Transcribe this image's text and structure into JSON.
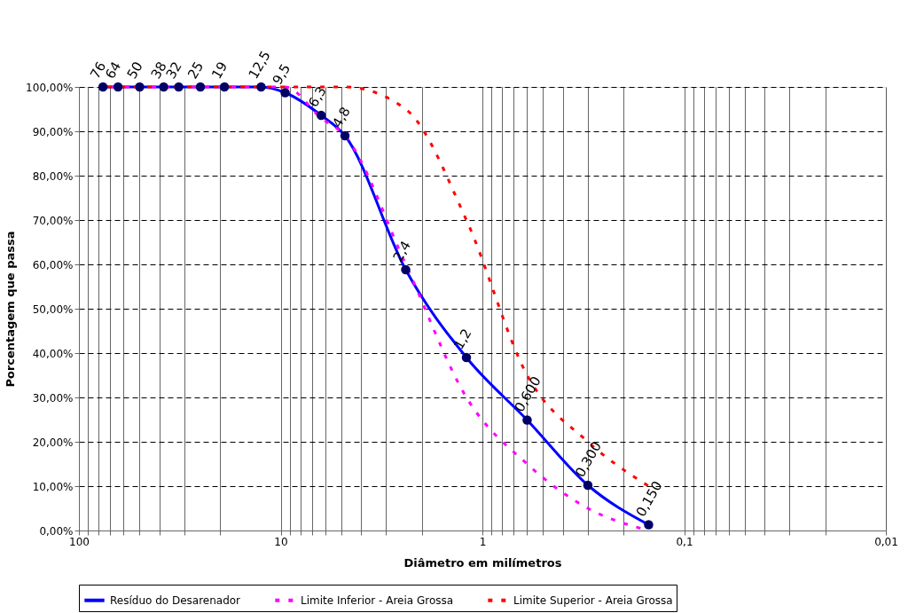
{
  "chart_data": {
    "type": "line",
    "xlabel": "Diâmetro em milímetros",
    "ylabel": "Porcentagem que passa",
    "log": "x",
    "xlim": [
      100,
      0.01
    ],
    "ylim": [
      0,
      100
    ],
    "xticks": [
      100,
      {
        "value": 90,
        "label": null
      },
      {
        "value": 80,
        "label": null
      },
      {
        "value": 70,
        "label": null
      },
      {
        "value": 60,
        "label": null
      },
      {
        "value": 50,
        "label": null
      },
      {
        "value": 40,
        "label": null
      },
      {
        "value": 30,
        "label": null
      },
      {
        "value": 20,
        "label": null
      },
      10,
      {
        "value": 9,
        "label": null
      },
      {
        "value": 8,
        "label": null
      },
      {
        "value": 7,
        "label": null
      },
      {
        "value": 6,
        "label": null
      },
      {
        "value": 5,
        "label": null
      },
      {
        "value": 4,
        "label": null
      },
      {
        "value": 3,
        "label": null
      },
      {
        "value": 2,
        "label": null
      },
      1,
      {
        "value": 0.9,
        "label": null
      },
      {
        "value": 0.8,
        "label": null
      },
      {
        "value": 0.7,
        "label": null
      },
      {
        "value": 0.6,
        "label": null
      },
      {
        "value": 0.5,
        "label": null
      },
      {
        "value": 0.4,
        "label": null
      },
      {
        "value": 0.3,
        "label": null
      },
      {
        "value": 0.2,
        "label": null
      },
      {
        "value": 0.1,
        "label": "0,1"
      },
      {
        "value": 0.09,
        "label": null
      },
      {
        "value": 0.08,
        "label": null
      },
      {
        "value": 0.07,
        "label": null
      },
      {
        "value": 0.06,
        "label": null
      },
      {
        "value": 0.05,
        "label": null
      },
      {
        "value": 0.04,
        "label": null
      },
      {
        "value": 0.03,
        "label": null
      },
      {
        "value": 0.02,
        "label": null
      },
      {
        "value": 0.01,
        "label": "0,01"
      }
    ],
    "yticks": [
      {
        "value": 0,
        "label": "0,00%"
      },
      {
        "value": 10,
        "label": "10,00%"
      },
      {
        "value": 20,
        "label": "20,00%"
      },
      {
        "value": 30,
        "label": "30,00%"
      },
      {
        "value": 40,
        "label": "40,00%"
      },
      {
        "value": 50,
        "label": "50,00%"
      },
      {
        "value": 60,
        "label": "60,00%"
      },
      {
        "value": 70,
        "label": "70,00%"
      },
      {
        "value": 80,
        "label": "80,00%"
      },
      {
        "value": 90,
        "label": "90,00%"
      },
      {
        "value": 100,
        "label": "100,00%"
      }
    ],
    "grid": true,
    "legend": "bottom",
    "series": [
      {
        "name": "Resíduo do Desarenador",
        "color": "#0000ff",
        "marker": "circle",
        "line_style": "solid",
        "x": [
          76,
          64,
          50,
          38,
          32,
          25,
          19,
          12.5,
          9.5,
          6.3,
          4.8,
          2.4,
          1.2,
          0.6,
          0.3,
          0.15
        ],
        "values": [
          100,
          100,
          100,
          100,
          100,
          100,
          100,
          100,
          98.7,
          93.6,
          89,
          58.8,
          39,
          24.9,
          10.2,
          1.3
        ]
      },
      {
        "name": "Limite Inferior - Areia Grossa",
        "color": "#ff00ff",
        "marker": "none",
        "line_style": "dashed",
        "x": [
          76,
          64,
          50,
          38,
          32,
          25,
          19,
          12.5,
          9.5,
          6.3,
          4.8,
          2.4,
          1.2,
          0.6,
          0.3,
          0.15
        ],
        "values": [
          100,
          100,
          100,
          100,
          100,
          100,
          100,
          100,
          100,
          93,
          89,
          60,
          30,
          15,
          5,
          0
        ]
      },
      {
        "name": "Limite Superior - Areia Grossa",
        "color": "#ff0000",
        "marker": "none",
        "line_style": "dashed",
        "x": [
          76,
          64,
          50,
          38,
          32,
          25,
          19,
          12.5,
          9.5,
          6.3,
          4.8,
          2.4,
          1.2,
          0.6,
          0.3,
          0.15
        ],
        "values": [
          100,
          100,
          100,
          100,
          100,
          100,
          100,
          100,
          100,
          100,
          100,
          95,
          70,
          35,
          20,
          10
        ]
      }
    ],
    "annotations": [
      {
        "text": "76",
        "x": 76,
        "y": 100
      },
      {
        "text": "64",
        "x": 64,
        "y": 100
      },
      {
        "text": "50",
        "x": 50,
        "y": 100
      },
      {
        "text": "38",
        "x": 38,
        "y": 100
      },
      {
        "text": "32",
        "x": 32,
        "y": 100
      },
      {
        "text": "25",
        "x": 25,
        "y": 100
      },
      {
        "text": "19",
        "x": 19,
        "y": 100
      },
      {
        "text": "12,5",
        "x": 12.5,
        "y": 100
      },
      {
        "text": "9,5",
        "x": 9.5,
        "y": 98.7
      },
      {
        "text": "6,3",
        "x": 6.3,
        "y": 93.6
      },
      {
        "text": "4,8",
        "x": 4.8,
        "y": 89
      },
      {
        "text": "2,4",
        "x": 2.4,
        "y": 58.8
      },
      {
        "text": "1,2",
        "x": 1.2,
        "y": 39
      },
      {
        "text": "0,600",
        "x": 0.6,
        "y": 24.9
      },
      {
        "text": "0,300",
        "x": 0.3,
        "y": 10.2
      },
      {
        "text": "0,150",
        "x": 0.15,
        "y": 1.3
      }
    ]
  }
}
